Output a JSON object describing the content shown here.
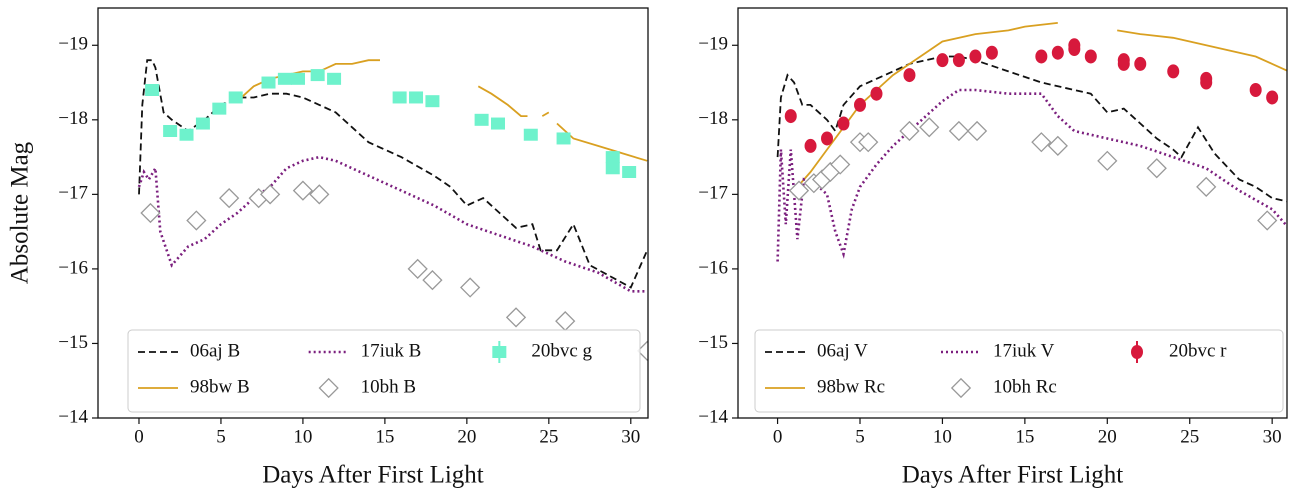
{
  "chart_data": [
    {
      "type": "line",
      "xlabel": "Days After First Light",
      "ylabel": "Absolute Mag",
      "xlim": [
        -2.5,
        31.05
      ],
      "ylim": [
        -14,
        -19.5
      ],
      "xticks": [
        0,
        5,
        10,
        15,
        20,
        25,
        30
      ],
      "yticks": [
        {
          "value": -14,
          "label": "−14"
        },
        {
          "value": -15,
          "label": "−15"
        },
        {
          "value": -16,
          "label": "−16"
        },
        {
          "value": -17,
          "label": "−17"
        },
        {
          "value": -18,
          "label": "−18"
        },
        {
          "value": -19,
          "label": "−19"
        }
      ],
      "legend": "lower center",
      "series": [
        {
          "name": "06aj B",
          "color": "#111111",
          "style": "dashed",
          "x": [
            0,
            0.2,
            0.5,
            0.8,
            1,
            1.5,
            2,
            3,
            4,
            5,
            6,
            7,
            8,
            9,
            10,
            11,
            12,
            13,
            14,
            16,
            18,
            19,
            20,
            21,
            22,
            23,
            24,
            24.5,
            25.5,
            26.5,
            27.5,
            30,
            31
          ],
          "values": [
            -17.0,
            -18.2,
            -18.8,
            -18.8,
            -18.7,
            -18.1,
            -18.0,
            -17.85,
            -18.0,
            -18.2,
            -18.3,
            -18.3,
            -18.35,
            -18.35,
            -18.3,
            -18.2,
            -18.1,
            -17.9,
            -17.7,
            -17.5,
            -17.25,
            -17.1,
            -16.85,
            -16.95,
            -16.75,
            -16.55,
            -16.6,
            -16.25,
            -16.25,
            -16.6,
            -16.05,
            -15.75,
            -16.25
          ]
        },
        {
          "name": "98bw B",
          "color": "#d9a021",
          "style": "solid",
          "x": [
            6,
            7,
            8,
            9,
            10,
            11,
            12,
            13,
            14,
            14.7,
            null,
            20.7,
            21.5,
            22.5,
            23.3,
            23.7,
            null,
            24.6,
            25,
            null,
            25.5,
            26.5,
            28,
            29.5,
            31
          ],
          "values": [
            -18.25,
            -18.45,
            -18.55,
            -18.6,
            -18.65,
            -18.65,
            -18.75,
            -18.75,
            -18.8,
            -18.8,
            null,
            -18.45,
            -18.35,
            -18.2,
            -18.05,
            -18.05,
            null,
            -18.05,
            -18.1,
            null,
            -17.95,
            -17.75,
            -17.65,
            -17.55,
            -17.45
          ]
        },
        {
          "name": "17iuk B",
          "color": "#7b1f7e",
          "style": "dotted",
          "x": [
            0,
            0.3,
            0.6,
            1,
            1.3,
            2,
            3,
            4,
            5,
            6,
            7,
            8,
            9,
            10,
            11,
            12,
            13,
            14,
            16,
            18,
            20,
            22,
            24,
            26,
            28,
            30,
            31
          ],
          "values": [
            -17.1,
            -17.3,
            -17.2,
            -17.35,
            -16.5,
            -16.05,
            -16.3,
            -16.4,
            -16.6,
            -16.75,
            -16.95,
            -17.1,
            -17.35,
            -17.45,
            -17.5,
            -17.45,
            -17.35,
            -17.25,
            -17.05,
            -16.85,
            -16.6,
            -16.45,
            -16.3,
            -16.1,
            -15.95,
            -15.7,
            -15.7
          ]
        },
        {
          "name": "10bh B",
          "color": "#999999",
          "marker": "diamond",
          "x": [
            0.7,
            3.5,
            5.5,
            7.3,
            8,
            10,
            11,
            17,
            17.9,
            20.2,
            23,
            26,
            31
          ],
          "values": [
            -16.75,
            -16.65,
            -16.95,
            -16.95,
            -17.0,
            -17.05,
            -17.0,
            -16.0,
            -15.85,
            -15.75,
            -15.35,
            -15.3,
            -14.9
          ]
        },
        {
          "name": "20bvc g",
          "color": "#6ef2cc",
          "marker": "square",
          "x": [
            0.8,
            1.9,
            2.9,
            3.9,
            4.9,
            5.9,
            7.9,
            8.9,
            9.7,
            10.9,
            11.9,
            15.9,
            16.9,
            17.9,
            20.9,
            21.9,
            23.9,
            25.9,
            28.9,
            28.9,
            29.9
          ],
          "values": [
            -18.4,
            -17.85,
            -17.8,
            -17.95,
            -18.15,
            -18.3,
            -18.5,
            -18.55,
            -18.55,
            -18.6,
            -18.55,
            -18.3,
            -18.3,
            -18.25,
            -18.0,
            -17.95,
            -17.8,
            -17.75,
            -17.35,
            -17.5,
            -17.3
          ]
        }
      ]
    },
    {
      "type": "line",
      "xlabel": "Days After First Light",
      "xlim": [
        -2.4,
        30.9
      ],
      "ylim": [
        -14,
        -19.5
      ],
      "xticks": [
        0,
        5,
        10,
        15,
        20,
        25,
        30
      ],
      "yticks": [
        {
          "value": -14,
          "label": "−14"
        },
        {
          "value": -15,
          "label": "−15"
        },
        {
          "value": -16,
          "label": "−16"
        },
        {
          "value": -17,
          "label": "−17"
        },
        {
          "value": -18,
          "label": "−18"
        },
        {
          "value": -19,
          "label": "−19"
        }
      ],
      "legend": "lower center",
      "series": [
        {
          "name": "06aj V",
          "color": "#111111",
          "style": "dashed",
          "x": [
            0,
            0.2,
            0.6,
            1,
            1.5,
            2,
            3,
            3.5,
            4,
            5,
            6,
            7,
            8,
            9,
            10,
            11,
            12,
            14,
            16,
            18,
            19,
            20,
            21,
            22,
            23,
            24,
            24.5,
            25.5,
            26.5,
            28,
            29,
            30,
            31
          ],
          "values": [
            -17.5,
            -18.3,
            -18.6,
            -18.5,
            -18.2,
            -18.2,
            -18.0,
            -17.85,
            -18.2,
            -18.45,
            -18.55,
            -18.65,
            -18.75,
            -18.8,
            -18.85,
            -18.85,
            -18.8,
            -18.65,
            -18.5,
            -18.4,
            -18.35,
            -18.1,
            -18.15,
            -17.95,
            -17.75,
            -17.6,
            -17.5,
            -17.9,
            -17.55,
            -17.2,
            -17.1,
            -16.95,
            -16.9
          ]
        },
        {
          "name": "98bw Rc",
          "color": "#d9a021",
          "style": "solid",
          "x": [
            1.2,
            2,
            3,
            4,
            5,
            6,
            7,
            8,
            9,
            10,
            12,
            14,
            15,
            17,
            null,
            20.6,
            22,
            24,
            25,
            26,
            27,
            28,
            29,
            30,
            31
          ],
          "values": [
            -17.1,
            -17.3,
            -17.6,
            -17.9,
            -18.2,
            -18.4,
            -18.6,
            -18.75,
            -18.9,
            -19.05,
            -19.15,
            -19.2,
            -19.25,
            -19.3,
            null,
            -19.2,
            -19.15,
            -19.1,
            -19.05,
            -19.0,
            -18.95,
            -18.9,
            -18.85,
            -18.75,
            -18.65
          ]
        },
        {
          "name": "17iuk V",
          "color": "#7b1f7e",
          "style": "dotted",
          "x": [
            0,
            0.2,
            0.5,
            0.8,
            1.2,
            1.6,
            2.5,
            3,
            3.5,
            4,
            4.5,
            5,
            6,
            7,
            8,
            9,
            10,
            11,
            12,
            14,
            16,
            17,
            18,
            20,
            22,
            24,
            26,
            28,
            30,
            31
          ],
          "values": [
            -16.1,
            -17.6,
            -16.6,
            -17.6,
            -16.4,
            -17.2,
            -17.1,
            -17.0,
            -16.5,
            -16.2,
            -16.8,
            -17.1,
            -17.4,
            -17.65,
            -17.85,
            -18.05,
            -18.25,
            -18.4,
            -18.4,
            -18.35,
            -18.35,
            -18.05,
            -17.85,
            -17.75,
            -17.65,
            -17.5,
            -17.35,
            -17.05,
            -16.8,
            -16.55
          ]
        },
        {
          "name": "10bh Rc",
          "color": "#999999",
          "marker": "diamond",
          "x": [
            1.3,
            2.2,
            2.7,
            3.2,
            3.8,
            5,
            5.5,
            8,
            9.2,
            11,
            12.1,
            16,
            17,
            20,
            23,
            26,
            29.7
          ],
          "values": [
            -17.05,
            -17.15,
            -17.2,
            -17.3,
            -17.4,
            -17.7,
            -17.7,
            -17.85,
            -17.9,
            -17.85,
            -17.85,
            -17.7,
            -17.65,
            -17.45,
            -17.35,
            -17.1,
            -16.65
          ]
        },
        {
          "name": "20bvc r",
          "color": "#d7193c",
          "marker": "circle",
          "x": [
            0.8,
            2,
            3,
            4,
            5,
            6,
            8,
            10,
            11,
            12,
            13,
            16,
            17,
            18,
            18,
            19,
            21,
            21,
            22,
            24,
            26,
            26,
            29,
            30
          ],
          "values": [
            -18.05,
            -17.65,
            -17.75,
            -17.95,
            -18.2,
            -18.35,
            -18.6,
            -18.8,
            -18.8,
            -18.85,
            -18.9,
            -18.85,
            -18.9,
            -18.95,
            -19.0,
            -18.85,
            -18.75,
            -18.8,
            -18.75,
            -18.65,
            -18.5,
            -18.55,
            -18.4,
            -18.3
          ]
        }
      ]
    }
  ]
}
